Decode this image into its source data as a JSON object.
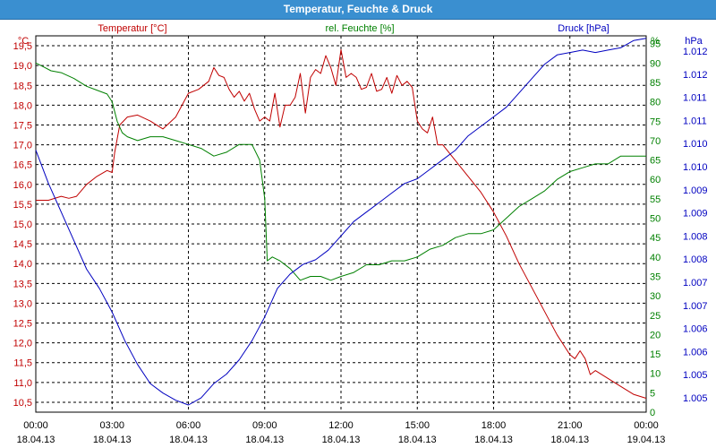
{
  "window": {
    "title": "Temperatur, Feuchte & Druck"
  },
  "colors": {
    "temperature": "#c00000",
    "humidity": "#008000",
    "pressure": "#0000c0",
    "titlebar": "#3a8fd0"
  },
  "chart_data": {
    "type": "line",
    "title": "Temperatur, Feuchte & Druck",
    "grid": true,
    "x": {
      "tick_times": [
        "00:00",
        "03:00",
        "06:00",
        "09:00",
        "12:00",
        "15:00",
        "18:00",
        "21:00",
        "00:00"
      ],
      "tick_dates": [
        "18.04.13",
        "18.04.13",
        "18.04.13",
        "18.04.13",
        "18.04.13",
        "18.04.13",
        "18.04.13",
        "18.04.13",
        "19.04.13"
      ],
      "range_hours": [
        0,
        24
      ]
    },
    "axes": {
      "temperature": {
        "label": "Temperatur [°C]",
        "unit": "°C",
        "side": "left",
        "range": [
          10.25,
          19.75
        ],
        "ticks": [
          "10,5",
          "11,0",
          "11,5",
          "12,0",
          "12,5",
          "13,0",
          "13,5",
          "14,0",
          "14,5",
          "15,0",
          "15,5",
          "16,0",
          "16,5",
          "17,0",
          "17,5",
          "18,0",
          "18,5",
          "19,0",
          "19,5"
        ]
      },
      "humidity": {
        "label": "rel. Feuchte [%]",
        "unit": "%",
        "side": "right",
        "range": [
          0,
          97
        ],
        "ticks": [
          "0",
          "5",
          "10",
          "15",
          "20",
          "25",
          "30",
          "35",
          "40",
          "45",
          "50",
          "55",
          "60",
          "65",
          "70",
          "75",
          "80",
          "85",
          "90",
          "95"
        ]
      },
      "pressure": {
        "label": "Druck [hPa]",
        "unit": "hPa",
        "side": "right",
        "range": [
          1004.7,
          1012.6
        ],
        "ticks": [
          "1.005",
          "1.005",
          "1.006",
          "1.006",
          "1.007",
          "1.007",
          "1.008",
          "1.008",
          "1.009",
          "1.009",
          "1.010",
          "1.010",
          "1.011",
          "1.011",
          "1.012",
          "1.012"
        ]
      }
    },
    "series": [
      {
        "axis": "temperature",
        "x": [
          0,
          0.5,
          1.0,
          1.3,
          1.6,
          2.0,
          2.4,
          2.8,
          3.0,
          3.1,
          3.3,
          3.6,
          4.0,
          4.5,
          5.0,
          5.5,
          6.0,
          6.4,
          6.8,
          7.0,
          7.2,
          7.4,
          7.6,
          7.8,
          8.0,
          8.2,
          8.4,
          8.6,
          8.8,
          9.0,
          9.2,
          9.4,
          9.6,
          9.8,
          10.0,
          10.2,
          10.4,
          10.6,
          10.8,
          11.0,
          11.2,
          11.4,
          11.6,
          11.8,
          12.0,
          12.2,
          12.4,
          12.6,
          12.8,
          13.0,
          13.2,
          13.4,
          13.6,
          13.8,
          14.0,
          14.2,
          14.4,
          14.6,
          14.8,
          15.0,
          15.2,
          15.4,
          15.6,
          15.8,
          16.0,
          16.5,
          17.0,
          17.5,
          18.0,
          18.5,
          19.0,
          19.5,
          20.0,
          20.5,
          20.8,
          21.0,
          21.2,
          21.4,
          21.6,
          21.8,
          22.0,
          22.5,
          23.0,
          23.5,
          24.0
        ],
        "y": [
          15.6,
          15.6,
          15.7,
          15.65,
          15.7,
          16.0,
          16.2,
          16.35,
          16.3,
          16.8,
          17.5,
          17.7,
          17.75,
          17.6,
          17.4,
          17.7,
          18.3,
          18.4,
          18.6,
          18.95,
          18.75,
          18.7,
          18.4,
          18.2,
          18.35,
          18.1,
          18.3,
          17.9,
          17.6,
          17.7,
          17.6,
          18.3,
          17.45,
          18.0,
          18.0,
          18.2,
          18.8,
          17.8,
          18.7,
          18.9,
          18.8,
          19.25,
          18.95,
          18.5,
          19.4,
          18.7,
          18.8,
          18.7,
          18.4,
          18.45,
          18.8,
          18.35,
          18.4,
          18.7,
          18.3,
          18.75,
          18.5,
          18.6,
          18.45,
          17.6,
          17.4,
          17.3,
          17.7,
          17.0,
          17.0,
          16.6,
          16.2,
          15.8,
          15.3,
          14.7,
          14.0,
          13.4,
          12.8,
          12.2,
          11.9,
          11.7,
          11.6,
          11.8,
          11.6,
          11.2,
          11.3,
          11.1,
          10.9,
          10.7,
          10.6
        ]
      },
      {
        "axis": "humidity",
        "x": [
          0,
          0.3,
          0.6,
          1.0,
          1.5,
          2.0,
          2.4,
          2.8,
          3.0,
          3.2,
          3.4,
          3.6,
          4.0,
          4.5,
          5.0,
          5.5,
          6.0,
          6.5,
          7.0,
          7.5,
          8.0,
          8.5,
          8.8,
          9.0,
          9.1,
          9.3,
          9.6,
          10.0,
          10.4,
          10.8,
          11.2,
          11.6,
          12.0,
          12.5,
          13.0,
          13.5,
          14.0,
          14.5,
          15.0,
          15.5,
          16.0,
          16.5,
          17.0,
          17.5,
          18.0,
          18.5,
          19.0,
          19.5,
          20.0,
          20.5,
          21.0,
          21.5,
          22.0,
          22.5,
          23.0,
          23.5,
          24.0
        ],
        "y": [
          90,
          89,
          88,
          87.5,
          86,
          84,
          83,
          82,
          80,
          75,
          72,
          71,
          70,
          71,
          71,
          70,
          69,
          68,
          66,
          67,
          69,
          69,
          65,
          55,
          39,
          40,
          39,
          37,
          34,
          35,
          35,
          34,
          35,
          36,
          38,
          38,
          39,
          39,
          40,
          42,
          43,
          45,
          46,
          46,
          47,
          50,
          53,
          55,
          57,
          60,
          62,
          63,
          64,
          64,
          66,
          66,
          66
        ],
        "y_note": "read as % from right axis"
      },
      {
        "axis": "pressure",
        "x": [
          0,
          0.5,
          1.0,
          1.5,
          2.0,
          2.5,
          3.0,
          3.5,
          4.0,
          4.5,
          5.0,
          5.5,
          6.0,
          6.5,
          7.0,
          7.5,
          8.0,
          8.5,
          9.0,
          9.5,
          10.0,
          10.5,
          11.0,
          11.5,
          12.0,
          12.5,
          13.0,
          13.5,
          14.0,
          14.5,
          15.0,
          15.5,
          16.0,
          16.5,
          17.0,
          17.5,
          18.0,
          18.5,
          19.0,
          19.5,
          20.0,
          20.5,
          21.0,
          21.5,
          22.0,
          22.5,
          23.0,
          23.5,
          24.0
        ],
        "y": [
          1010.2,
          1009.5,
          1008.9,
          1008.3,
          1007.7,
          1007.3,
          1006.8,
          1006.2,
          1005.7,
          1005.3,
          1005.1,
          1004.95,
          1004.85,
          1005.0,
          1005.3,
          1005.5,
          1005.8,
          1006.2,
          1006.7,
          1007.3,
          1007.6,
          1007.8,
          1007.9,
          1008.1,
          1008.4,
          1008.7,
          1008.9,
          1009.1,
          1009.3,
          1009.5,
          1009.6,
          1009.8,
          1010.0,
          1010.2,
          1010.5,
          1010.7,
          1010.9,
          1011.1,
          1011.4,
          1011.7,
          1012.0,
          1012.2,
          1012.25,
          1012.3,
          1012.25,
          1012.3,
          1012.35,
          1012.5,
          1012.55
        ]
      }
    ]
  }
}
